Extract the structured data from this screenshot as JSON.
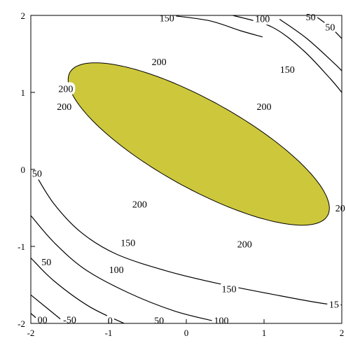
{
  "chart_data": {
    "type": "contour",
    "title": "",
    "xlabel": "",
    "ylabel": "",
    "xlim": [
      -2,
      2
    ],
    "ylim": [
      -2,
      2
    ],
    "x_ticks": [
      -2,
      -1,
      0,
      1,
      2
    ],
    "y_ticks": [
      -2,
      -1,
      0,
      1,
      2
    ],
    "x_tick_labels": [
      "-2",
      "-1",
      "0",
      "1",
      "2"
    ],
    "y_tick_labels": [
      "-2",
      "-1",
      "0",
      "1",
      "2"
    ],
    "grid": false,
    "fill_color": "#cdc73c",
    "line_color": "#000000",
    "filled_region": {
      "level": 200,
      "center": [
        0.16,
        0.33
      ],
      "semi_axes": [
        1.9,
        0.57
      ],
      "angle_deg": 29.3
    },
    "contours": [
      {
        "level": 150,
        "segments": [
          [
            [
              -0.2,
              2.0
            ],
            [
              0.3,
              1.93
            ],
            [
              0.7,
              1.8
            ],
            [
              0.98,
              1.72
            ]
          ],
          [
            [
              1.2,
              1.95
            ],
            [
              1.55,
              1.7
            ],
            [
              1.9,
              1.38
            ],
            [
              2.0,
              1.28
            ]
          ],
          [
            [
              -1.95,
              -0.05
            ],
            [
              -1.7,
              -0.45
            ],
            [
              -1.35,
              -0.82
            ],
            [
              -0.9,
              -1.1
            ],
            [
              -0.25,
              -1.32
            ],
            [
              0.4,
              -1.48
            ],
            [
              1.2,
              -1.64
            ],
            [
              1.75,
              -1.74
            ],
            [
              2.0,
              -1.76
            ]
          ]
        ]
      },
      {
        "level": 100,
        "segments": [
          [
            [
              0.6,
              2.0
            ],
            [
              1.1,
              1.85
            ],
            [
              1.5,
              1.55
            ],
            [
              1.85,
              1.18
            ],
            [
              2.0,
              1.0
            ]
          ],
          [
            [
              -2.0,
              -0.6
            ],
            [
              -1.7,
              -0.95
            ],
            [
              -1.3,
              -1.3
            ],
            [
              -0.75,
              -1.6
            ],
            [
              -0.15,
              -1.84
            ],
            [
              0.4,
              -1.98
            ],
            [
              0.45,
              -2.0
            ]
          ]
        ]
      },
      {
        "level": 50,
        "segments": [
          [
            [
              1.65,
              2.0
            ],
            [
              1.85,
              1.85
            ],
            [
              2.0,
              1.7
            ]
          ],
          [
            [
              -2.0,
              -1.15
            ],
            [
              -1.7,
              -1.45
            ],
            [
              -1.25,
              -1.78
            ],
            [
              -0.8,
              -2.0
            ]
          ]
        ]
      },
      {
        "level": 0,
        "segments": [
          [
            [
              -2.0,
              -1.63
            ],
            [
              -1.55,
              -2.0
            ]
          ]
        ]
      },
      {
        "level": -50,
        "segments": [
          [
            [
              -2.0,
              -1.87
            ],
            [
              -1.85,
              -2.0
            ]
          ]
        ]
      }
    ],
    "contour_labels": [
      {
        "text": "200",
        "x": -0.35,
        "y": 1.4
      },
      {
        "text": "200",
        "x": -1.55,
        "y": 1.05
      },
      {
        "text": "200",
        "x": -1.57,
        "y": 0.82
      },
      {
        "text": "200",
        "x": 1.0,
        "y": 0.82
      },
      {
        "text": "200",
        "x": -0.6,
        "y": -0.45
      },
      {
        "text": "20",
        "x": 1.98,
        "y": -0.5
      },
      {
        "text": "200",
        "x": 0.75,
        "y": -0.97
      },
      {
        "text": "150",
        "x": -0.25,
        "y": 1.97
      },
      {
        "text": "100",
        "x": 0.98,
        "y": 1.96
      },
      {
        "text": "50",
        "x": 1.6,
        "y": 1.98
      },
      {
        "text": "150",
        "x": 1.3,
        "y": 1.3
      },
      {
        "text": "150",
        "x": -0.75,
        "y": -0.95
      },
      {
        "text": "150",
        "x": 0.55,
        "y": -1.55
      },
      {
        "text": "15",
        "x": 1.9,
        "y": -1.75
      },
      {
        "text": "100",
        "x": -0.9,
        "y": -1.3
      },
      {
        "text": "100",
        "x": 0.45,
        "y": -1.96
      },
      {
        "text": "50",
        "x": 1.85,
        "y": 1.85
      },
      {
        "text": "50",
        "x": -1.8,
        "y": -1.2
      },
      {
        "text": "50",
        "x": -0.35,
        "y": -1.96
      },
      {
        "text": "0",
        "x": -0.98,
        "y": -1.96
      },
      {
        "text": "-50",
        "x": -1.5,
        "y": -1.95
      },
      {
        "text": "00",
        "x": -1.85,
        "y": -1.95
      },
      {
        "text": "50",
        "x": -1.92,
        "y": -0.05
      }
    ]
  }
}
